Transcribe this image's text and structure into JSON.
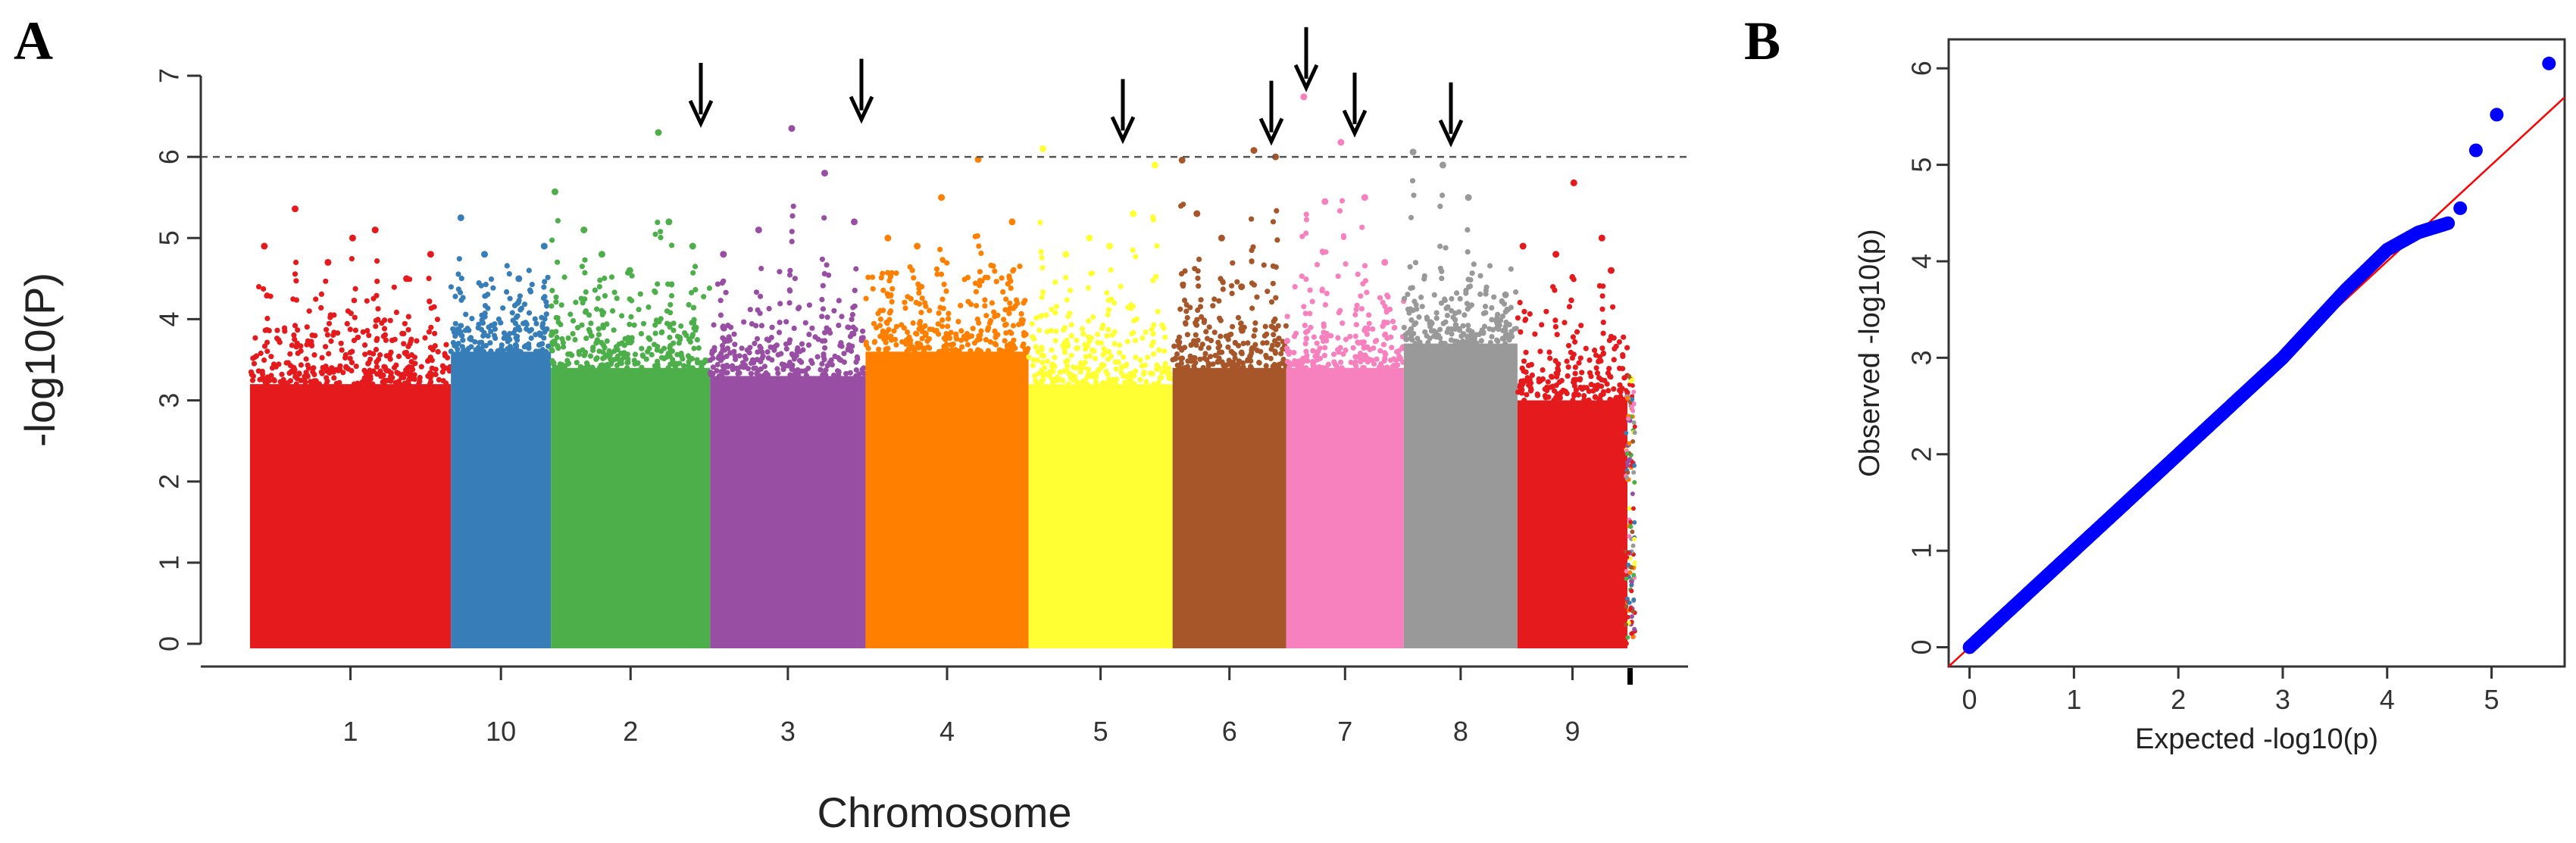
{
  "panels": {
    "a_label": "A",
    "b_label": "B"
  },
  "chart_data": [
    {
      "type": "scatter",
      "subtype": "manhattan",
      "title": "",
      "xlabel": "Chromosome",
      "ylabel": "-log10(P)",
      "ylim": [
        0,
        7
      ],
      "yticks": [
        "0",
        "1",
        "2",
        "3",
        "4",
        "5",
        "6",
        "7"
      ],
      "threshold": 6,
      "threshold_style": "dashed",
      "grid": false,
      "legend": "none",
      "chromosomes": [
        {
          "label": "1",
          "color": "#E41A1C",
          "dense_max": 3.2,
          "peaks": [
            4.9,
            5.36,
            4.7,
            5.0,
            5.1,
            4.5,
            4.8
          ]
        },
        {
          "label": "10",
          "color": "#377EB8",
          "dense_max": 3.6,
          "peaks": [
            5.25,
            4.8,
            4.5,
            4.9
          ]
        },
        {
          "label": "2",
          "color": "#4DAF4A",
          "dense_max": 3.4,
          "peaks": [
            5.57,
            5.1,
            4.8,
            4.6,
            6.3,
            5.2,
            4.9
          ]
        },
        {
          "label": "3",
          "color": "#984EA3",
          "dense_max": 3.3,
          "peaks": [
            4.8,
            5.1,
            6.35,
            5.8,
            5.2
          ]
        },
        {
          "label": "4",
          "color": "#FF7F00",
          "dense_max": 3.6,
          "peaks": [
            5.0,
            4.9,
            5.5,
            5.97,
            5.2
          ]
        },
        {
          "label": "5",
          "color": "#FFFF33",
          "dense_max": 3.2,
          "peaks": [
            6.1,
            4.8,
            5.0,
            4.9,
            5.3,
            5.9
          ]
        },
        {
          "label": "6",
          "color": "#A65628",
          "dense_max": 3.4,
          "peaks": [
            5.96,
            5.3,
            5.0,
            4.4,
            6.08,
            6.0
          ]
        },
        {
          "label": "7",
          "color": "#F781BF",
          "dense_max": 3.4,
          "peaks": [
            6.74,
            5.45,
            6.18,
            5.5,
            4.7
          ]
        },
        {
          "label": "8",
          "color": "#999999",
          "dense_max": 3.7,
          "peaks": [
            6.06,
            5.9,
            5.5,
            4.3
          ]
        },
        {
          "label": "9",
          "color": "#E41A1C",
          "dense_max": 3.0,
          "peaks": [
            4.9,
            4.8,
            5.68,
            5.0,
            4.6
          ]
        }
      ],
      "arrow_targets": [
        6.3,
        6.35,
        6.1,
        6.08,
        6.74,
        6.18,
        6.06
      ]
    },
    {
      "type": "scatter",
      "subtype": "qq",
      "title": "",
      "xlabel": "Expected -log10(p)",
      "ylabel": "Observed -log10(p)",
      "xlim": [
        -0.2,
        5.7
      ],
      "ylim": [
        -0.2,
        6.3
      ],
      "xticks": [
        "0",
        "1",
        "2",
        "3",
        "4",
        "5"
      ],
      "yticks": [
        "0",
        "1",
        "2",
        "3",
        "4",
        "5",
        "6"
      ],
      "reference_line": "y = x",
      "reference_color": "#FF0000",
      "point_color": "#0000FF",
      "curve": [
        [
          0,
          0
        ],
        [
          1,
          1
        ],
        [
          2,
          2
        ],
        [
          3,
          3
        ],
        [
          3.6,
          3.7
        ],
        [
          4.0,
          4.12
        ],
        [
          4.3,
          4.3
        ],
        [
          4.6,
          4.4
        ]
      ],
      "tail_points": [
        [
          4.7,
          4.55
        ],
        [
          4.85,
          5.15
        ],
        [
          5.05,
          5.52
        ],
        [
          5.55,
          6.05
        ]
      ],
      "grid": false,
      "legend": "none"
    }
  ]
}
